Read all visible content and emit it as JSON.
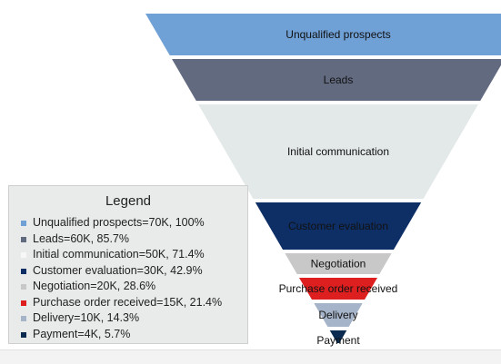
{
  "chart_data": {
    "type": "funnel",
    "title": "",
    "stages": [
      {
        "name": "Unqualified prospects",
        "value": 70,
        "percent": 100,
        "legend_label": "Unqualified prospects=70K, 100%"
      },
      {
        "name": "Leads",
        "value": 60,
        "percent": 85.7,
        "legend_label": "Leads=60K, 85.7%"
      },
      {
        "name": "Initial communication",
        "value": 50,
        "percent": 71.4,
        "legend_label": "Initial communication=50K, 71.4%"
      },
      {
        "name": "Customer evaluation",
        "value": 30,
        "percent": 42.9,
        "legend_label": "Customer evaluation=30K, 42.9%"
      },
      {
        "name": "Negotiation",
        "value": 20,
        "percent": 28.6,
        "legend_label": "Negotiation=20K, 28.6%"
      },
      {
        "name": "Purchase order received",
        "value": 15,
        "percent": 21.4,
        "legend_label": "Purchase order received=15K, 21.4%"
      },
      {
        "name": "Delivery",
        "value": 10,
        "percent": 14.3,
        "legend_label": "Delivery=10K, 14.3%"
      },
      {
        "name": "Payment",
        "value": 4,
        "percent": 5.7,
        "legend_label": "Payment=4K, 5.7%"
      }
    ],
    "value_unit": "K",
    "colors": [
      "#6fa0d6",
      "#626a80",
      "#e3e8e8",
      "#0e2f66",
      "#c8c8c8",
      "#dd1f1f",
      "#a6b4c9",
      "#0b2a50"
    ],
    "legend": {
      "title": "Legend",
      "position": "left"
    }
  }
}
